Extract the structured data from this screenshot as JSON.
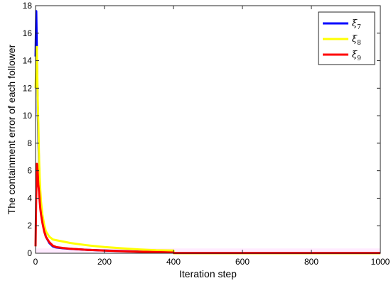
{
  "chart_data": {
    "type": "line",
    "xlabel": "Iteration step",
    "ylabel": "The containment error of each follower",
    "xlim": [
      0,
      1000
    ],
    "ylim": [
      0,
      18
    ],
    "xticks": [
      "0",
      "200",
      "400",
      "600",
      "800",
      "1000"
    ],
    "yticks": [
      "0",
      "2",
      "4",
      "6",
      "8",
      "10",
      "12",
      "14",
      "16",
      "18"
    ],
    "grid": false,
    "legend_position": "top-right",
    "series": [
      {
        "name": "ξ7",
        "symbol": "ξ",
        "subscript": "7",
        "color": "#0000ff",
        "x": [
          0,
          2,
          4,
          6,
          8,
          10,
          12,
          14,
          16,
          20,
          25,
          30,
          40,
          50,
          60,
          80,
          100,
          150,
          200,
          250,
          300,
          350,
          400,
          401,
          1000
        ],
        "y": [
          14.3,
          17.6,
          14.5,
          11.0,
          8.5,
          6.5,
          5.0,
          4.0,
          3.2,
          2.4,
          1.7,
          1.2,
          0.75,
          0.5,
          0.42,
          0.36,
          0.32,
          0.25,
          0.2,
          0.16,
          0.12,
          0.09,
          0.06,
          0.0,
          0.0
        ]
      },
      {
        "name": "ξ8",
        "symbol": "ξ",
        "subscript": "8",
        "color": "#ffff00",
        "x": [
          0,
          2,
          4,
          6,
          8,
          10,
          12,
          14,
          16,
          20,
          25,
          30,
          40,
          50,
          60,
          80,
          100,
          150,
          200,
          250,
          300,
          350,
          400,
          401,
          1000
        ],
        "y": [
          12.0,
          13.5,
          15.0,
          11.5,
          9.5,
          7.0,
          5.5,
          4.5,
          3.7,
          2.8,
          2.1,
          1.6,
          1.2,
          1.0,
          0.95,
          0.85,
          0.75,
          0.58,
          0.45,
          0.36,
          0.28,
          0.22,
          0.2,
          0.0,
          0.0
        ]
      },
      {
        "name": "ξ9",
        "symbol": "ξ",
        "subscript": "9",
        "color": "#ff0000",
        "x": [
          0,
          2,
          4,
          6,
          8,
          10,
          12,
          14,
          16,
          20,
          25,
          30,
          40,
          50,
          60,
          80,
          100,
          150,
          200,
          250,
          300,
          350,
          400,
          401,
          1000
        ],
        "y": [
          0.5,
          4.5,
          6.5,
          6.0,
          5.0,
          4.5,
          3.8,
          3.2,
          2.8,
          2.2,
          1.6,
          1.2,
          0.8,
          0.55,
          0.45,
          0.38,
          0.33,
          0.25,
          0.19,
          0.15,
          0.11,
          0.08,
          0.05,
          0.02,
          0.02
        ]
      }
    ]
  }
}
